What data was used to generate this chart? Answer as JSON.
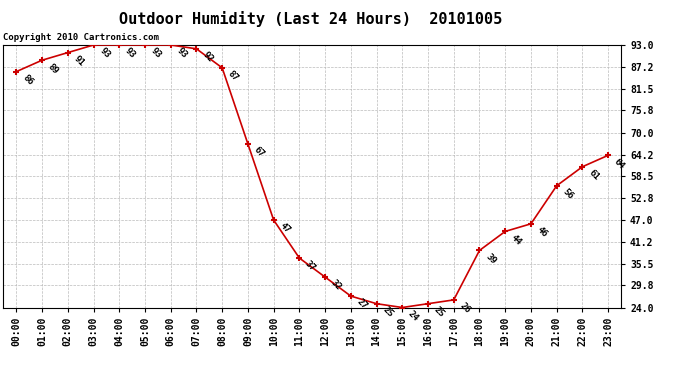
{
  "title": "Outdoor Humidity (Last 24 Hours)  20101005",
  "copyright": "Copyright 2010 Cartronics.com",
  "hours": [
    "00:00",
    "01:00",
    "02:00",
    "03:00",
    "04:00",
    "05:00",
    "06:00",
    "07:00",
    "08:00",
    "09:00",
    "10:00",
    "11:00",
    "12:00",
    "13:00",
    "14:00",
    "15:00",
    "16:00",
    "17:00",
    "18:00",
    "19:00",
    "20:00",
    "21:00",
    "22:00",
    "23:00"
  ],
  "values": [
    86,
    89,
    91,
    93,
    93,
    93,
    93,
    92,
    87,
    67,
    47,
    37,
    32,
    27,
    25,
    24,
    25,
    26,
    39,
    44,
    46,
    56,
    61,
    64
  ],
  "line_color": "#cc0000",
  "marker_color": "#cc0000",
  "bg_color": "#ffffff",
  "grid_color": "#bbbbbb",
  "ylim_min": 24.0,
  "ylim_max": 93.0,
  "yticks": [
    24.0,
    29.8,
    35.5,
    41.2,
    47.0,
    52.8,
    58.5,
    64.2,
    70.0,
    75.8,
    81.5,
    87.2,
    93.0
  ],
  "title_fontsize": 11,
  "label_fontsize": 6.5,
  "tick_fontsize": 7,
  "copyright_fontsize": 6.5
}
